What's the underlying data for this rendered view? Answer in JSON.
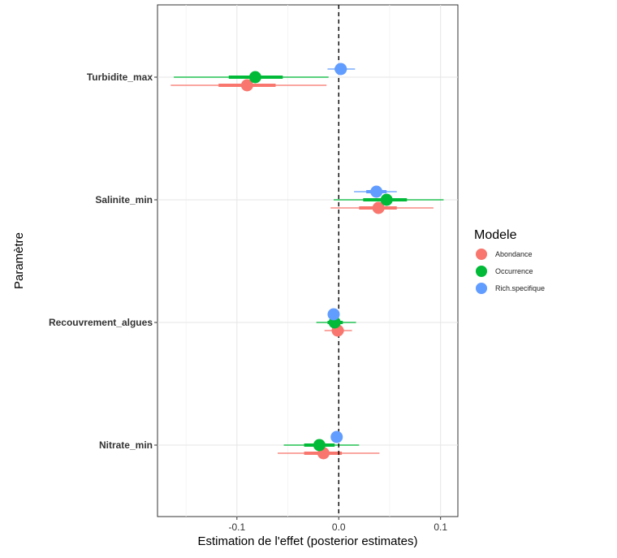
{
  "chart_data": {
    "type": "scatter",
    "subtype": "forest-plot",
    "xlabel": "Estimation de l'effet (posterior estimates)",
    "ylabel": "Paramètre",
    "xlim": [
      -0.178,
      0.117
    ],
    "x_ticks": [
      -0.1,
      0.0,
      0.1
    ],
    "x_tick_labels": [
      "-0.1",
      "0.0",
      "0.1"
    ],
    "reference_line": {
      "x": 0,
      "style": "dashed"
    },
    "categories": [
      "Turbidite_max",
      "Salinite_min",
      "Recouvrement_algues",
      "Nitrate_min"
    ],
    "grid": true,
    "legend": {
      "title": "Modele",
      "position": "right"
    },
    "series": [
      {
        "name": "Abondance",
        "color": "#F8766D",
        "points": [
          {
            "category": "Turbidite_max",
            "estimate": -0.09,
            "inner": [
              -0.118,
              -0.062
            ],
            "outer": [
              -0.165,
              -0.012
            ]
          },
          {
            "category": "Salinite_min",
            "estimate": 0.039,
            "inner": [
              0.02,
              0.057
            ],
            "outer": [
              -0.008,
              0.093
            ]
          },
          {
            "category": "Recouvrement_algues",
            "estimate": -0.001,
            "inner": [
              -0.006,
              0.005
            ],
            "outer": [
              -0.014,
              0.013
            ]
          },
          {
            "category": "Nitrate_min",
            "estimate": -0.015,
            "inner": [
              -0.034,
              0.003
            ],
            "outer": [
              -0.06,
              0.04
            ]
          }
        ]
      },
      {
        "name": "Occurrence",
        "color": "#00BA38",
        "points": [
          {
            "category": "Turbidite_max",
            "estimate": -0.082,
            "inner": [
              -0.108,
              -0.055
            ],
            "outer": [
              -0.162,
              -0.01
            ]
          },
          {
            "category": "Salinite_min",
            "estimate": 0.047,
            "inner": [
              0.024,
              0.067
            ],
            "outer": [
              -0.005,
              0.103
            ]
          },
          {
            "category": "Recouvrement_algues",
            "estimate": -0.004,
            "inner": [
              -0.011,
              0.004
            ],
            "outer": [
              -0.022,
              0.017
            ]
          },
          {
            "category": "Nitrate_min",
            "estimate": -0.019,
            "inner": [
              -0.034,
              -0.004
            ],
            "outer": [
              -0.054,
              0.02
            ]
          }
        ]
      },
      {
        "name": "Rich.specifique",
        "color": "#619CFF",
        "points": [
          {
            "category": "Turbidite_max",
            "estimate": 0.002,
            "inner": [
              -0.004,
              0.007
            ],
            "outer": [
              -0.011,
              0.016
            ]
          },
          {
            "category": "Salinite_min",
            "estimate": 0.037,
            "inner": [
              0.027,
              0.047
            ],
            "outer": [
              0.015,
              0.057
            ]
          },
          {
            "category": "Recouvrement_algues",
            "estimate": -0.005,
            "inner": [
              -0.007,
              -0.003
            ],
            "outer": [
              -0.008,
              -0.002
            ]
          },
          {
            "category": "Nitrate_min",
            "estimate": -0.002,
            "inner": [
              -0.004,
              0.0
            ],
            "outer": [
              -0.005,
              0.001
            ]
          }
        ]
      }
    ]
  }
}
